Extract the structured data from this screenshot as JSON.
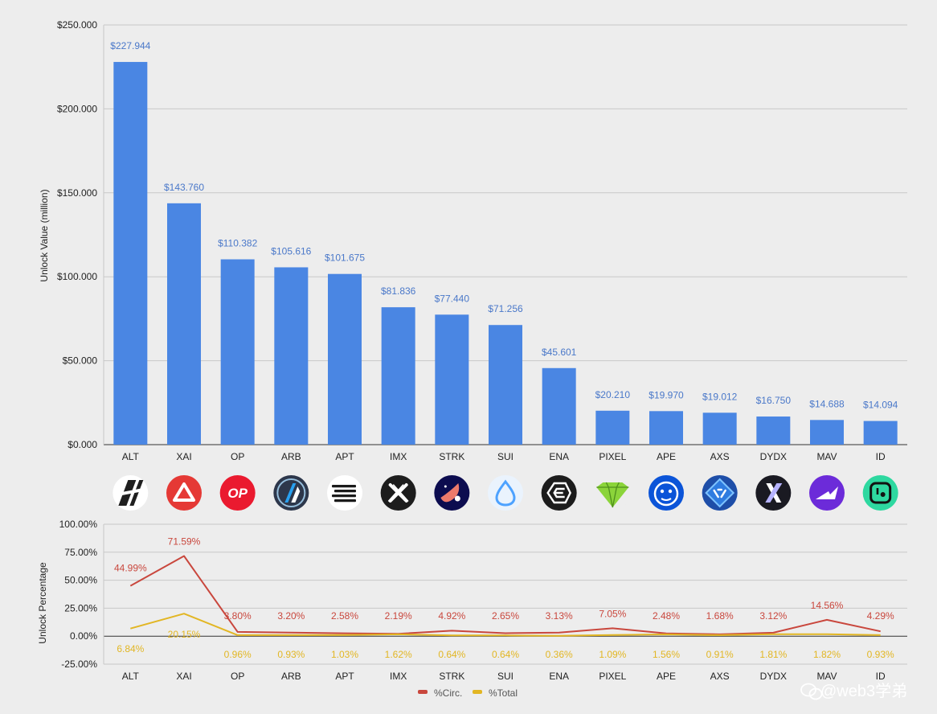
{
  "chart_data": [
    {
      "type": "bar",
      "ylabel": "Unlock Value (million)",
      "ylim": [
        0,
        250
      ],
      "yticks": [
        "$0.000",
        "$50.000",
        "$100.000",
        "$150.000",
        "$200.000",
        "$250.000"
      ],
      "categories": [
        "ALT",
        "XAI",
        "OP",
        "ARB",
        "APT",
        "IMX",
        "STRK",
        "SUI",
        "ENA",
        "PIXEL",
        "APE",
        "AXS",
        "DYDX",
        "MAV",
        "ID"
      ],
      "values": [
        227.944,
        143.76,
        110.382,
        105.616,
        101.675,
        81.836,
        77.44,
        71.256,
        45.601,
        20.21,
        19.97,
        19.012,
        16.75,
        14.688,
        14.094
      ],
      "data_labels": [
        "$227.944",
        "$143.760",
        "$110.382",
        "$105.616",
        "$101.675",
        "$81.836",
        "$77.440",
        "$71.256",
        "$45.601",
        "$20.210",
        "$19.970",
        "$19.012",
        "$16.750",
        "$14.688",
        "$14.094"
      ],
      "bar_color": "#4a86e3",
      "grid": true
    },
    {
      "type": "line",
      "ylabel": "Unlock Percentage",
      "ylim": [
        -25,
        100
      ],
      "yticks": [
        "-25.00%",
        "0.00%",
        "25.00%",
        "50.00%",
        "75.00%",
        "100.00%"
      ],
      "categories": [
        "ALT",
        "XAI",
        "OP",
        "ARB",
        "APT",
        "IMX",
        "STRK",
        "SUI",
        "ENA",
        "PIXEL",
        "APE",
        "AXS",
        "DYDX",
        "MAV",
        "ID"
      ],
      "series": [
        {
          "name": "%Circ.",
          "color": "#c9473d",
          "values": [
            44.99,
            71.59,
            3.8,
            3.2,
            2.58,
            2.19,
            4.92,
            2.65,
            3.13,
            7.05,
            2.48,
            1.68,
            3.12,
            14.56,
            4.29
          ],
          "labels": [
            "44.99%",
            "71.59%",
            "3.80%",
            "3.20%",
            "2.58%",
            "2.19%",
            "4.92%",
            "2.65%",
            "3.13%",
            "7.05%",
            "2.48%",
            "1.68%",
            "3.12%",
            "14.56%",
            "4.29%"
          ]
        },
        {
          "name": "%Total",
          "color": "#e2b623",
          "values": [
            6.84,
            20.15,
            0.96,
            0.93,
            1.03,
            1.62,
            0.64,
            0.64,
            0.36,
            1.09,
            1.56,
            0.91,
            1.81,
            1.82,
            0.93
          ],
          "labels": [
            "6.84%",
            "20.15%",
            "0.96%",
            "0.93%",
            "1.03%",
            "1.62%",
            "0.64%",
            "0.64%",
            "0.36%",
            "1.09%",
            "1.56%",
            "0.91%",
            "1.81%",
            "1.82%",
            "0.93%"
          ]
        }
      ],
      "legend_position": "bottom-center",
      "grid": true
    }
  ],
  "logos": [
    {
      "token": "ALT",
      "icon": "altlayer-logo-icon",
      "bg": "#ffffff",
      "fg": "#1f1f1f"
    },
    {
      "token": "XAI",
      "icon": "xai-logo-icon",
      "bg": "#e53935",
      "fg": "#ffffff"
    },
    {
      "token": "OP",
      "icon": "optimism-logo-icon",
      "bg": "#ea1a2f",
      "fg": "#ffffff",
      "text": "OP"
    },
    {
      "token": "ARB",
      "icon": "arbitrum-logo-icon",
      "bg": "#2d374b",
      "fg": "#28a0f0"
    },
    {
      "token": "APT",
      "icon": "aptos-logo-icon",
      "bg": "#ffffff",
      "fg": "#1a1a1a"
    },
    {
      "token": "IMX",
      "icon": "immutable-logo-icon",
      "bg": "#1d1d1d",
      "fg": "#ffffff"
    },
    {
      "token": "STRK",
      "icon": "starknet-logo-icon",
      "bg": "#0c0c4f",
      "fg": "#ec796b"
    },
    {
      "token": "SUI",
      "icon": "sui-logo-icon",
      "bg": "#eaf3fd",
      "fg": "#4da2ff"
    },
    {
      "token": "ENA",
      "icon": "ethena-logo-icon",
      "bg": "#1c1c1c",
      "fg": "#ffffff"
    },
    {
      "token": "PIXEL",
      "icon": "pixels-gem-logo-icon",
      "bg": "#ededed",
      "fg": "#8bd43a"
    },
    {
      "token": "APE",
      "icon": "apecoin-logo-icon",
      "bg": "#0b54d8",
      "fg": "#ffffff"
    },
    {
      "token": "AXS",
      "icon": "axie-infinity-logo-icon",
      "bg": "#1e4ea8",
      "fg": "#7ec3ff"
    },
    {
      "token": "DYDX",
      "icon": "dydx-logo-icon",
      "bg": "#1a1a22",
      "fg": "#ffffff"
    },
    {
      "token": "MAV",
      "icon": "maverick-logo-icon",
      "bg": "#6c2bd9",
      "fg": "#ffffff"
    },
    {
      "token": "ID",
      "icon": "space-id-logo-icon",
      "bg": "#2ed8a0",
      "fg": "#121212"
    }
  ],
  "watermark": {
    "icon": "wechat-icon",
    "text": "@web3学弟"
  }
}
